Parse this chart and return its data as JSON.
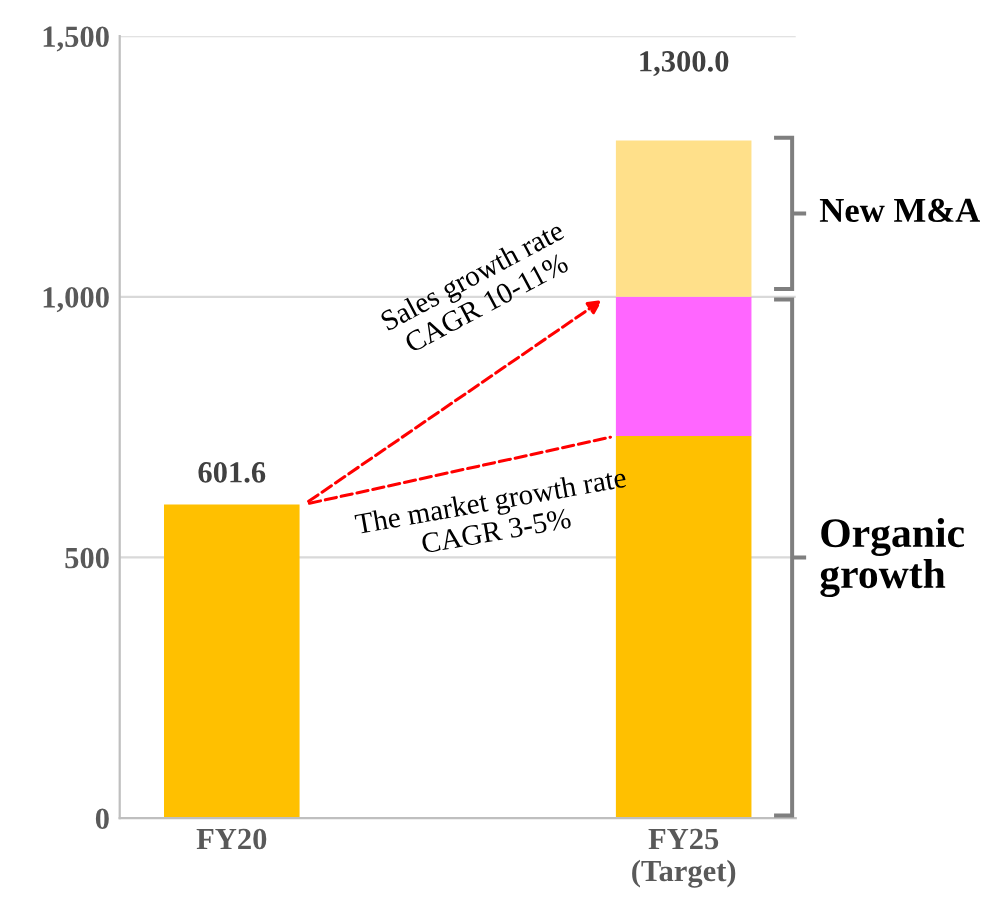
{
  "chart_data": {
    "type": "bar",
    "stacked": true,
    "categories": [
      "FY20",
      "FY25\n(Target)"
    ],
    "series": [
      {
        "color": "#ffc000",
        "values": [
          601.6,
          733
        ]
      },
      {
        "color": "#ff66ff",
        "values": [
          null,
          267
        ]
      },
      {
        "color": "#ffe08a",
        "values": [
          null,
          300
        ]
      }
    ],
    "totals": [
      "601.6",
      "1,300.0"
    ],
    "ylim": [
      0,
      1500
    ],
    "yticks": [
      0,
      500,
      {
        "value": 1000,
        "label": "1,000"
      },
      {
        "value": 1500,
        "label": "1,500"
      }
    ],
    "grid": "y",
    "annotations": [
      "Sales growth rate\nCAGR 10-11%",
      "The market growth rate\nCAGR 3-5%",
      "New M&A",
      "Organic\ngrowth"
    ]
  }
}
